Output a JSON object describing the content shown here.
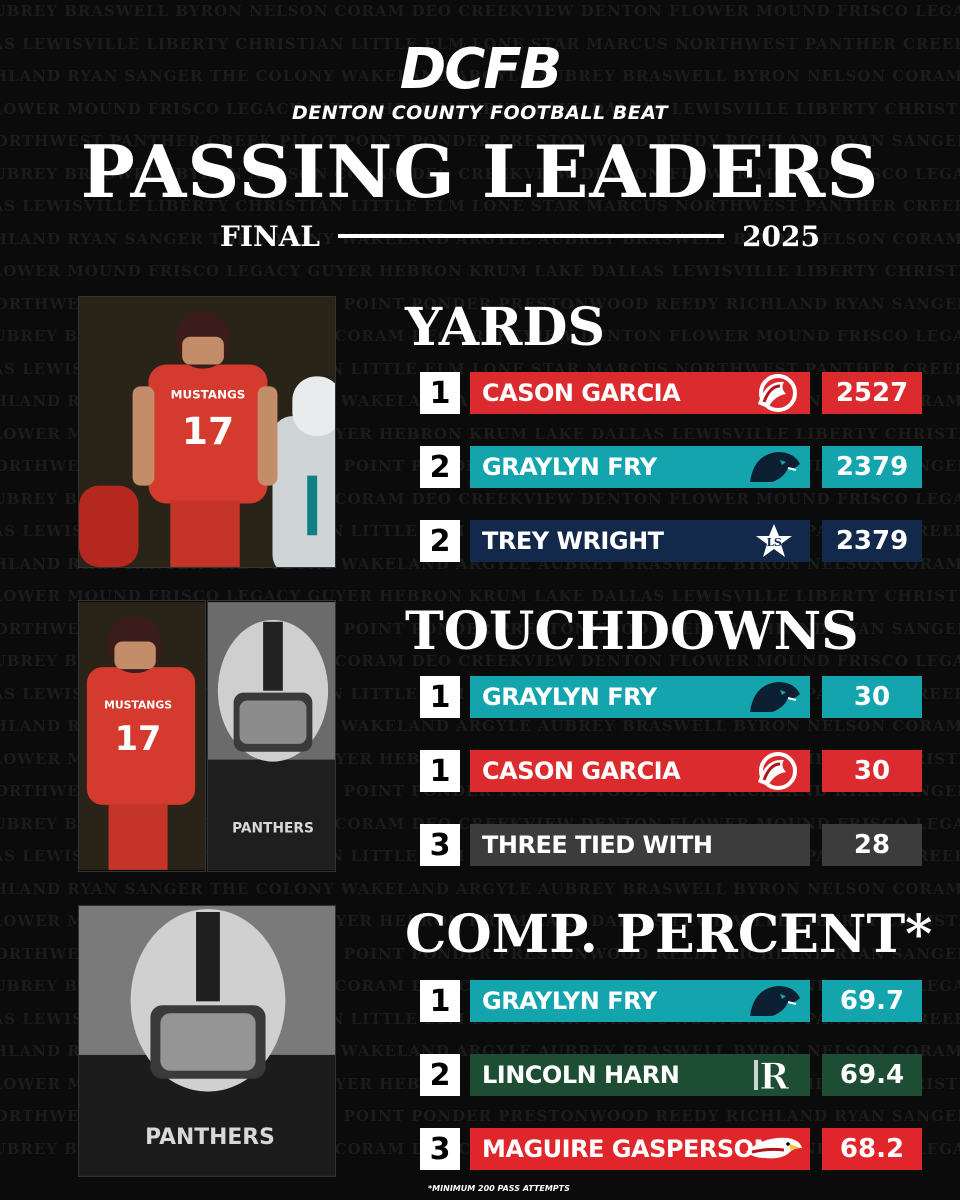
{
  "brand": {
    "logo_text": "DCFB",
    "subtitle": "DENTON COUNTY FOOTBALL BEAT"
  },
  "header": {
    "title": "PASSING LEADERS",
    "final_label": "FINAL",
    "year": "2025"
  },
  "background_pattern": [
    "AUBREY   BRASWELL   BYRON NELSON   CORAM DEO   CREEKVIEW DENTON   FLOWER MOUND   FRISCO LEGACY   GUYER   HEBRON",
    "LAS   LEWISVILLE   LIBERTY CHRISTIAN   LITTLE ELM   LONE STAR MARCUS   NORTHWEST   PANTHER CREEK   PILOT POINT   PONDER",
    "CHLAND   RYAN   SANGER   THE COLONY   WAKELAND   ARGYLE   AUBREY   BRASWELL   BYRON NELSON   CORAM DEO   CREEKVIEW",
    "FLOWER MOUND   FRISCO LEGACY   GUYER   HEBRON   KRUM   LAKE DALLAS   LEWISVILLE   LIBERTY CHRISTIAN   LITTLE ELM",
    "NORTHWEST   PANTHER CREEK   PILOT POINT   PONDER   PRESTONWOOD REEDY   RICHLAND   RYAN   SANGER   THE COLONY"
  ],
  "sections": [
    {
      "title": "YARDS",
      "rows": [
        {
          "rank": "1",
          "name": "CASON GARCIA",
          "value": "2527",
          "bar_color": "#dc2b2f",
          "value_color": "#dc2b2f",
          "team_icon": "mustang-logo"
        },
        {
          "rank": "2",
          "name": "GRAYLYN FRY",
          "value": "2379",
          "bar_color": "#14a4ad",
          "value_color": "#14a4ad",
          "team_icon": "panther-logo"
        },
        {
          "rank": "2",
          "name": "TREY WRIGHT",
          "value": "2379",
          "bar_color": "#13294b",
          "value_color": "#13294b",
          "team_icon": "lone-star-logo"
        }
      ]
    },
    {
      "title": "TOUCHDOWNS",
      "rows": [
        {
          "rank": "1",
          "name": "GRAYLYN FRY",
          "value": "30",
          "bar_color": "#14a4ad",
          "value_color": "#14a4ad",
          "team_icon": "panther-logo"
        },
        {
          "rank": "1",
          "name": "CASON GARCIA",
          "value": "30",
          "bar_color": "#dc2b2f",
          "value_color": "#dc2b2f",
          "team_icon": "mustang-logo"
        },
        {
          "rank": "3",
          "name": "THREE TIED WITH",
          "value": "28",
          "bar_color": "#3c3c3c",
          "value_color": "#3c3c3c",
          "team_icon": ""
        }
      ]
    },
    {
      "title": "COMP. PERCENT*",
      "rows": [
        {
          "rank": "1",
          "name": "GRAYLYN FRY",
          "value": "69.7",
          "bar_color": "#14a4ad",
          "value_color": "#14a4ad",
          "team_icon": "panther-logo"
        },
        {
          "rank": "2",
          "name": "LINCOLN HARN",
          "value": "69.4",
          "bar_color": "#1d4d33",
          "value_color": "#1d4d33",
          "team_icon": "r-logo"
        },
        {
          "rank": "3",
          "name": "MAGUIRE GASPERSON",
          "value": "68.2",
          "bar_color": "#e0262b",
          "value_color": "#e0262b",
          "team_icon": "eagle-logo"
        }
      ]
    }
  ],
  "photos": [
    {
      "jersey_text": "MUSTANGS",
      "jersey_number": "17",
      "icon": "player-photo-red"
    },
    {
      "jersey_text": "MUSTANGS",
      "jersey_number": "17",
      "icon": "player-photo-red"
    },
    {
      "jersey_text": "PANTHERS",
      "icon": "player-photo-bw"
    },
    {
      "jersey_text": "PANTHERS",
      "icon": "player-photo-bw"
    }
  ],
  "footnote": "*MINIMUM 200 PASS ATTEMPTS"
}
